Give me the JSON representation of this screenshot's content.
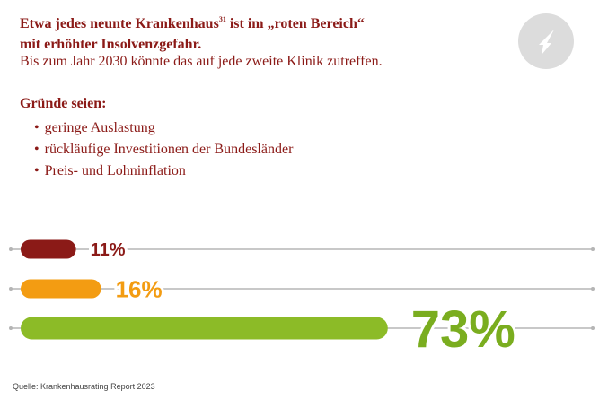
{
  "text": {
    "headline_part1": "Etwa jedes neunte Krankenhaus",
    "footnote_ref": "31",
    "headline_part2": " ist im „roten Bereich“",
    "headline_line2": "mit erhöhter Insolvenzgefahr.",
    "subline": "Bis zum Jahr 2030 könnte das auf jede zweite Klinik zutreffen.",
    "reasons_title": "Gründe seien:",
    "reasons": [
      "geringe Auslastung",
      "rückläufige Investitionen der Bundesländer",
      "Preis- und Lohninflation"
    ],
    "source": "Quelle: Krankenhausrating Report 2023"
  },
  "badge": {
    "icon": "down-arrow-icon"
  },
  "colors": {
    "text_red": "#8b1a17",
    "badge_bg": "#dcdcdc",
    "axis_line": "#b5b5b5"
  },
  "chart_data": {
    "type": "bar",
    "orientation": "horizontal",
    "xlim": [
      0,
      100
    ],
    "values": [
      11,
      16,
      73
    ],
    "labels": [
      "11%",
      "16%",
      "73%"
    ],
    "colors": [
      "#8b1a17",
      "#f39c12",
      "#8cbb27"
    ],
    "label_colors": [
      "#8b1a17",
      "#f39c12",
      "#7aad1f"
    ]
  }
}
